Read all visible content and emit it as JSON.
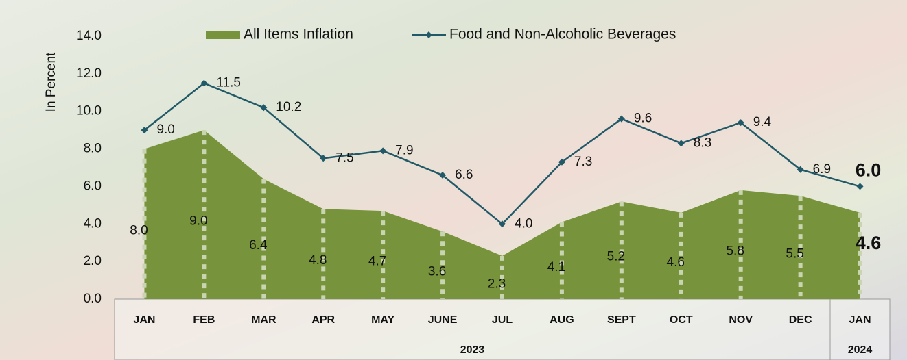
{
  "chart_data": {
    "type": "area-line",
    "y_axis_label": "In  Percent",
    "categories": [
      "JAN",
      "FEB",
      "MAR",
      "APR",
      "MAY",
      "JUNE",
      "JUL",
      "AUG",
      "SEPT",
      "OCT",
      "NOV",
      "DEC",
      "JAN"
    ],
    "category_groups": [
      {
        "label": "2023",
        "count": 12
      },
      {
        "label": "2024",
        "count": 1
      }
    ],
    "series": [
      {
        "name": "All Items Inflation",
        "kind": "area",
        "color": "#77933c",
        "values": [
          8.0,
          9.0,
          6.4,
          4.8,
          4.7,
          3.6,
          2.3,
          4.1,
          5.2,
          4.6,
          5.8,
          5.5,
          4.6
        ],
        "value_labels": [
          "8.0",
          "9.0",
          "6.4",
          "4.8",
          "4.7",
          "3.6",
          "2.3",
          "4.1",
          "5.2",
          "4.6",
          "5.8",
          "5.5",
          "4.6"
        ]
      },
      {
        "name": "Food and Non-Alcoholic Beverages",
        "kind": "line",
        "color": "#215968",
        "values": [
          9.0,
          11.5,
          10.2,
          7.5,
          7.9,
          6.6,
          4.0,
          7.3,
          9.6,
          8.3,
          9.4,
          6.9,
          6.0
        ],
        "value_labels": [
          "9.0",
          "11.5",
          "10.2",
          "7.5",
          "7.9",
          "6.6",
          "4.0",
          "7.3",
          "9.6",
          "8.3",
          "9.4",
          "6.9",
          "6.0"
        ]
      }
    ],
    "ylim": [
      0,
      14
    ],
    "yticks": [
      {
        "value": 0,
        "label": "0.0"
      },
      {
        "value": 2,
        "label": "2.0"
      },
      {
        "value": 4,
        "label": "4.0"
      },
      {
        "value": 6,
        "label": "6.0"
      },
      {
        "value": 8,
        "label": "8.0"
      },
      {
        "value": 10,
        "label": "10.0"
      },
      {
        "value": 12,
        "label": "12.0"
      },
      {
        "value": 14,
        "label": "14.0"
      }
    ],
    "legend": "top"
  }
}
